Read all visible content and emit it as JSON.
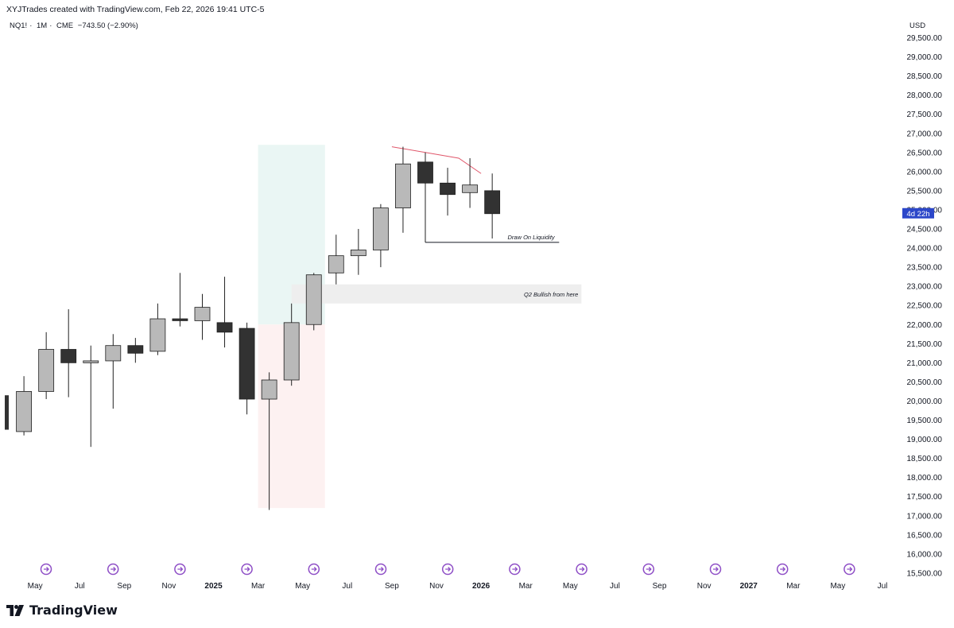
{
  "header": {
    "text": "XYJTrades created with TradingView.com, Feb 22, 2026 19:41 UTC-5"
  },
  "symbol": {
    "name": "NQ1!",
    "interval": "1M",
    "exchange": "CME",
    "change": "−743.50 (−2.90%)"
  },
  "price_axis": {
    "currency": "USD"
  },
  "countdown": {
    "text": "4d 22h",
    "bg": "#2c47c9"
  },
  "branding": {
    "name": "TradingView"
  },
  "annotations": {
    "liquidity_label": "Draw On Liquidity",
    "q2_label": "Q2 Bullish from here"
  },
  "colors": {
    "bull": "#b9b9b9",
    "bear": "#323232",
    "wick": "#222222",
    "liquidity_line": "#e0566a",
    "green_zone": "#eaf6f4",
    "red_zone": "#fdf1f1",
    "grey_zone": "#eeeeee",
    "marker": "#8e4ec6"
  },
  "chart_data": {
    "type": "candlestick",
    "ylim": [
      15250,
      29800
    ],
    "y_ticks": [
      "29,500.00",
      "29,000.00",
      "28,500.00",
      "28,000.00",
      "27,500.00",
      "27,000.00",
      "26,500.00",
      "26,000.00",
      "25,500.00",
      "25,000.00",
      "24,500.00",
      "24,000.00",
      "23,500.00",
      "23,000.00",
      "22,500.00",
      "22,000.00",
      "21,500.00",
      "21,000.00",
      "20,500.00",
      "20,000.00",
      "19,500.00",
      "19,000.00",
      "18,500.00",
      "18,000.00",
      "17,500.00",
      "17,000.00",
      "16,500.00",
      "16,000.00",
      "15,500.00"
    ],
    "x_ticks": [
      {
        "label": "May",
        "index": 0.5,
        "bold": false
      },
      {
        "label": "Jul",
        "index": 2.5,
        "bold": false
      },
      {
        "label": "Sep",
        "index": 4.5,
        "bold": false
      },
      {
        "label": "Nov",
        "index": 6.5,
        "bold": false
      },
      {
        "label": "2025",
        "index": 8.5,
        "bold": true
      },
      {
        "label": "Mar",
        "index": 10.5,
        "bold": false
      },
      {
        "label": "May",
        "index": 12.5,
        "bold": false
      },
      {
        "label": "Jul",
        "index": 14.5,
        "bold": false
      },
      {
        "label": "Sep",
        "index": 16.5,
        "bold": false
      },
      {
        "label": "Nov",
        "index": 18.5,
        "bold": false
      },
      {
        "label": "2026",
        "index": 20.5,
        "bold": true
      },
      {
        "label": "Mar",
        "index": 22.5,
        "bold": false
      },
      {
        "label": "May",
        "index": 24.5,
        "bold": false
      },
      {
        "label": "Jul",
        "index": 26.5,
        "bold": false
      },
      {
        "label": "Sep",
        "index": 28.5,
        "bold": false
      },
      {
        "label": "Nov",
        "index": 30.5,
        "bold": false
      },
      {
        "label": "2027",
        "index": 32.5,
        "bold": true
      },
      {
        "label": "Mar",
        "index": 34.5,
        "bold": false
      },
      {
        "label": "May",
        "index": 36.5,
        "bold": false
      },
      {
        "label": "Jul",
        "index": 38.5,
        "bold": false
      }
    ],
    "candles": [
      {
        "date": "2024-04",
        "open": 19200,
        "high": 20650,
        "low": 19100,
        "close": 20250
      },
      {
        "date": "2024-05",
        "open": 20250,
        "high": 21800,
        "low": 20050,
        "close": 21350
      },
      {
        "date": "2024-06",
        "open": 21350,
        "high": 22400,
        "low": 20100,
        "close": 21000
      },
      {
        "date": "2024-07",
        "open": 21000,
        "high": 21450,
        "low": 18800,
        "close": 21050
      },
      {
        "date": "2024-08",
        "open": 21050,
        "high": 21750,
        "low": 19800,
        "close": 21450
      },
      {
        "date": "2024-09",
        "open": 21450,
        "high": 21650,
        "low": 21000,
        "close": 21250
      },
      {
        "date": "2024-10",
        "open": 21300,
        "high": 22550,
        "low": 21200,
        "close": 22150
      },
      {
        "date": "2024-11",
        "open": 22150,
        "high": 23350,
        "low": 21950,
        "close": 22100
      },
      {
        "date": "2024-12",
        "open": 22100,
        "high": 22800,
        "low": 21600,
        "close": 22450
      },
      {
        "date": "2025-01",
        "open": 22050,
        "high": 23250,
        "low": 21400,
        "close": 21800
      },
      {
        "date": "2025-02",
        "open": 21900,
        "high": 22050,
        "low": 19650,
        "close": 20050
      },
      {
        "date": "2025-03",
        "open": 20050,
        "high": 20750,
        "low": 17150,
        "close": 20550
      },
      {
        "date": "2025-04",
        "open": 20550,
        "high": 22550,
        "low": 20400,
        "close": 22050
      },
      {
        "date": "2025-05",
        "open": 22000,
        "high": 23350,
        "low": 21850,
        "close": 23300
      },
      {
        "date": "2025-06",
        "open": 23350,
        "high": 24350,
        "low": 23050,
        "close": 23800
      },
      {
        "date": "2025-07",
        "open": 23800,
        "high": 24500,
        "low": 23300,
        "close": 23950
      },
      {
        "date": "2025-08",
        "open": 23950,
        "high": 25150,
        "low": 23500,
        "close": 25050
      },
      {
        "date": "2025-09",
        "open": 25050,
        "high": 26650,
        "low": 24400,
        "close": 26200
      },
      {
        "date": "2025-10",
        "open": 26250,
        "high": 26500,
        "low": 24150,
        "close": 25700
      },
      {
        "date": "2025-11",
        "open": 25700,
        "high": 26100,
        "low": 24850,
        "close": 25400
      },
      {
        "date": "2025-12",
        "open": 25450,
        "high": 26350,
        "low": 25050,
        "close": 25650
      },
      {
        "date": "2026-01",
        "open": 25500,
        "high": 25950,
        "low": 24250,
        "close": 24900
      }
    ],
    "drawings": {
      "liquidity_level": 24150,
      "red_line": [
        {
          "index": 16.5,
          "price": 26650
        },
        {
          "index": 19.5,
          "price": 26350
        },
        {
          "index": 20.5,
          "price": 25950
        }
      ],
      "green_zone": {
        "from_index": 10.5,
        "to_index": 13.5,
        "top": 26700,
        "bottom": 22000
      },
      "red_zone": {
        "from_index": 10.5,
        "to_index": 13.5,
        "top": 22000,
        "bottom": 17200
      },
      "grey_zone": {
        "from_index": 12.0,
        "to_index": 25.0,
        "top": 23050,
        "bottom": 22550
      }
    }
  }
}
